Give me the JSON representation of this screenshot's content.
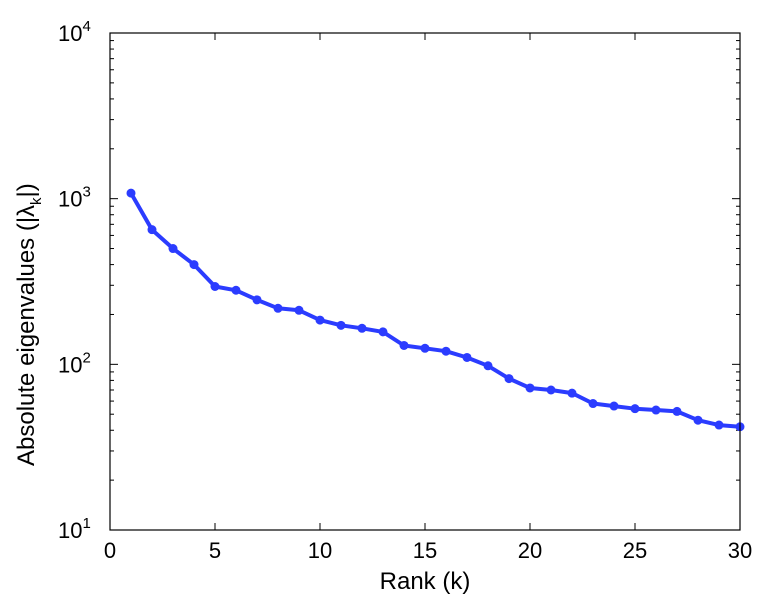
{
  "chart_data": {
    "type": "line",
    "xlabel": "Rank (k)",
    "ylabel": "Absolute eigenvalues (|λ",
    "ylabel_sub": "k",
    "ylabel_end": "|)",
    "xlim": [
      0,
      30
    ],
    "ylim": [
      10,
      10000
    ],
    "yscale": "log",
    "grid": false,
    "x_ticks": [
      0,
      5,
      10,
      15,
      20,
      25,
      30
    ],
    "y_ticks": [
      {
        "value": 10,
        "base": "10",
        "exp": "1"
      },
      {
        "value": 100,
        "base": "10",
        "exp": "2"
      },
      {
        "value": 1000,
        "base": "10",
        "exp": "3"
      },
      {
        "value": 10000,
        "base": "10",
        "exp": "4"
      }
    ],
    "series": [
      {
        "color": "#2b3cff",
        "marker": "circle",
        "x": [
          1,
          2,
          3,
          4,
          5,
          6,
          7,
          8,
          9,
          10,
          11,
          12,
          13,
          14,
          15,
          16,
          17,
          18,
          19,
          20,
          21,
          22,
          23,
          24,
          25,
          26,
          27,
          28,
          29,
          30
        ],
        "values": [
          1080,
          650,
          500,
          400,
          295,
          280,
          245,
          218,
          212,
          185,
          172,
          165,
          157,
          130,
          125,
          120,
          110,
          98,
          82,
          72,
          70,
          67,
          58,
          56,
          54,
          53,
          52,
          46,
          43,
          42
        ]
      }
    ]
  }
}
